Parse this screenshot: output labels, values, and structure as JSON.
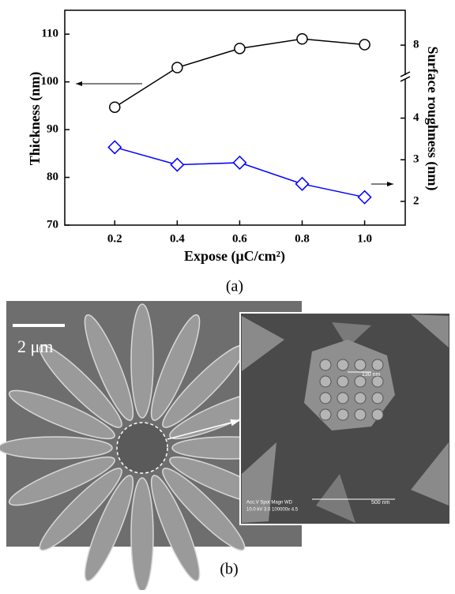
{
  "chart_data": {
    "type": "line",
    "caption": "(a)",
    "x_label": "Expose (μC/cm²)",
    "y_label": "Thickness (nm)",
    "y2_label": "Surface roughness (nm)",
    "x": [
      0.2,
      0.4,
      0.6,
      0.8,
      1.0
    ],
    "xlim": [
      0.04,
      1.13
    ],
    "xticks": [
      0.2,
      0.4,
      0.6,
      0.8,
      {
        "value": 1,
        "label": "1.0"
      }
    ],
    "ylim": [
      70,
      115
    ],
    "yticks": [
      70,
      80,
      90,
      100,
      110
    ],
    "y2_break": true,
    "y2_segments": [
      {
        "lim": [
          1.43,
          4.94
        ],
        "ticks": [
          2,
          3,
          4
        ]
      },
      {
        "lim": [
          7.28,
          8.84
        ],
        "ticks": [
          8
        ]
      }
    ],
    "series": [
      {
        "color": "#000000",
        "marker": "circle",
        "values": [
          94.7,
          103,
          107,
          109,
          107.8
        ]
      },
      {
        "color": "#0000ff",
        "marker": "diamond",
        "axis": "y2",
        "values": [
          3.3,
          2.88,
          2.93,
          2.42,
          2.1
        ]
      }
    ]
  },
  "figure_b": {
    "caption": "(b)",
    "scale_bar": "2 μm",
    "inset_labels": [
      "130 nm",
      "500 nm",
      "Acc.V  Spot Magn   WD",
      "10.0 kV 3.0   100000x 4.5"
    ]
  }
}
